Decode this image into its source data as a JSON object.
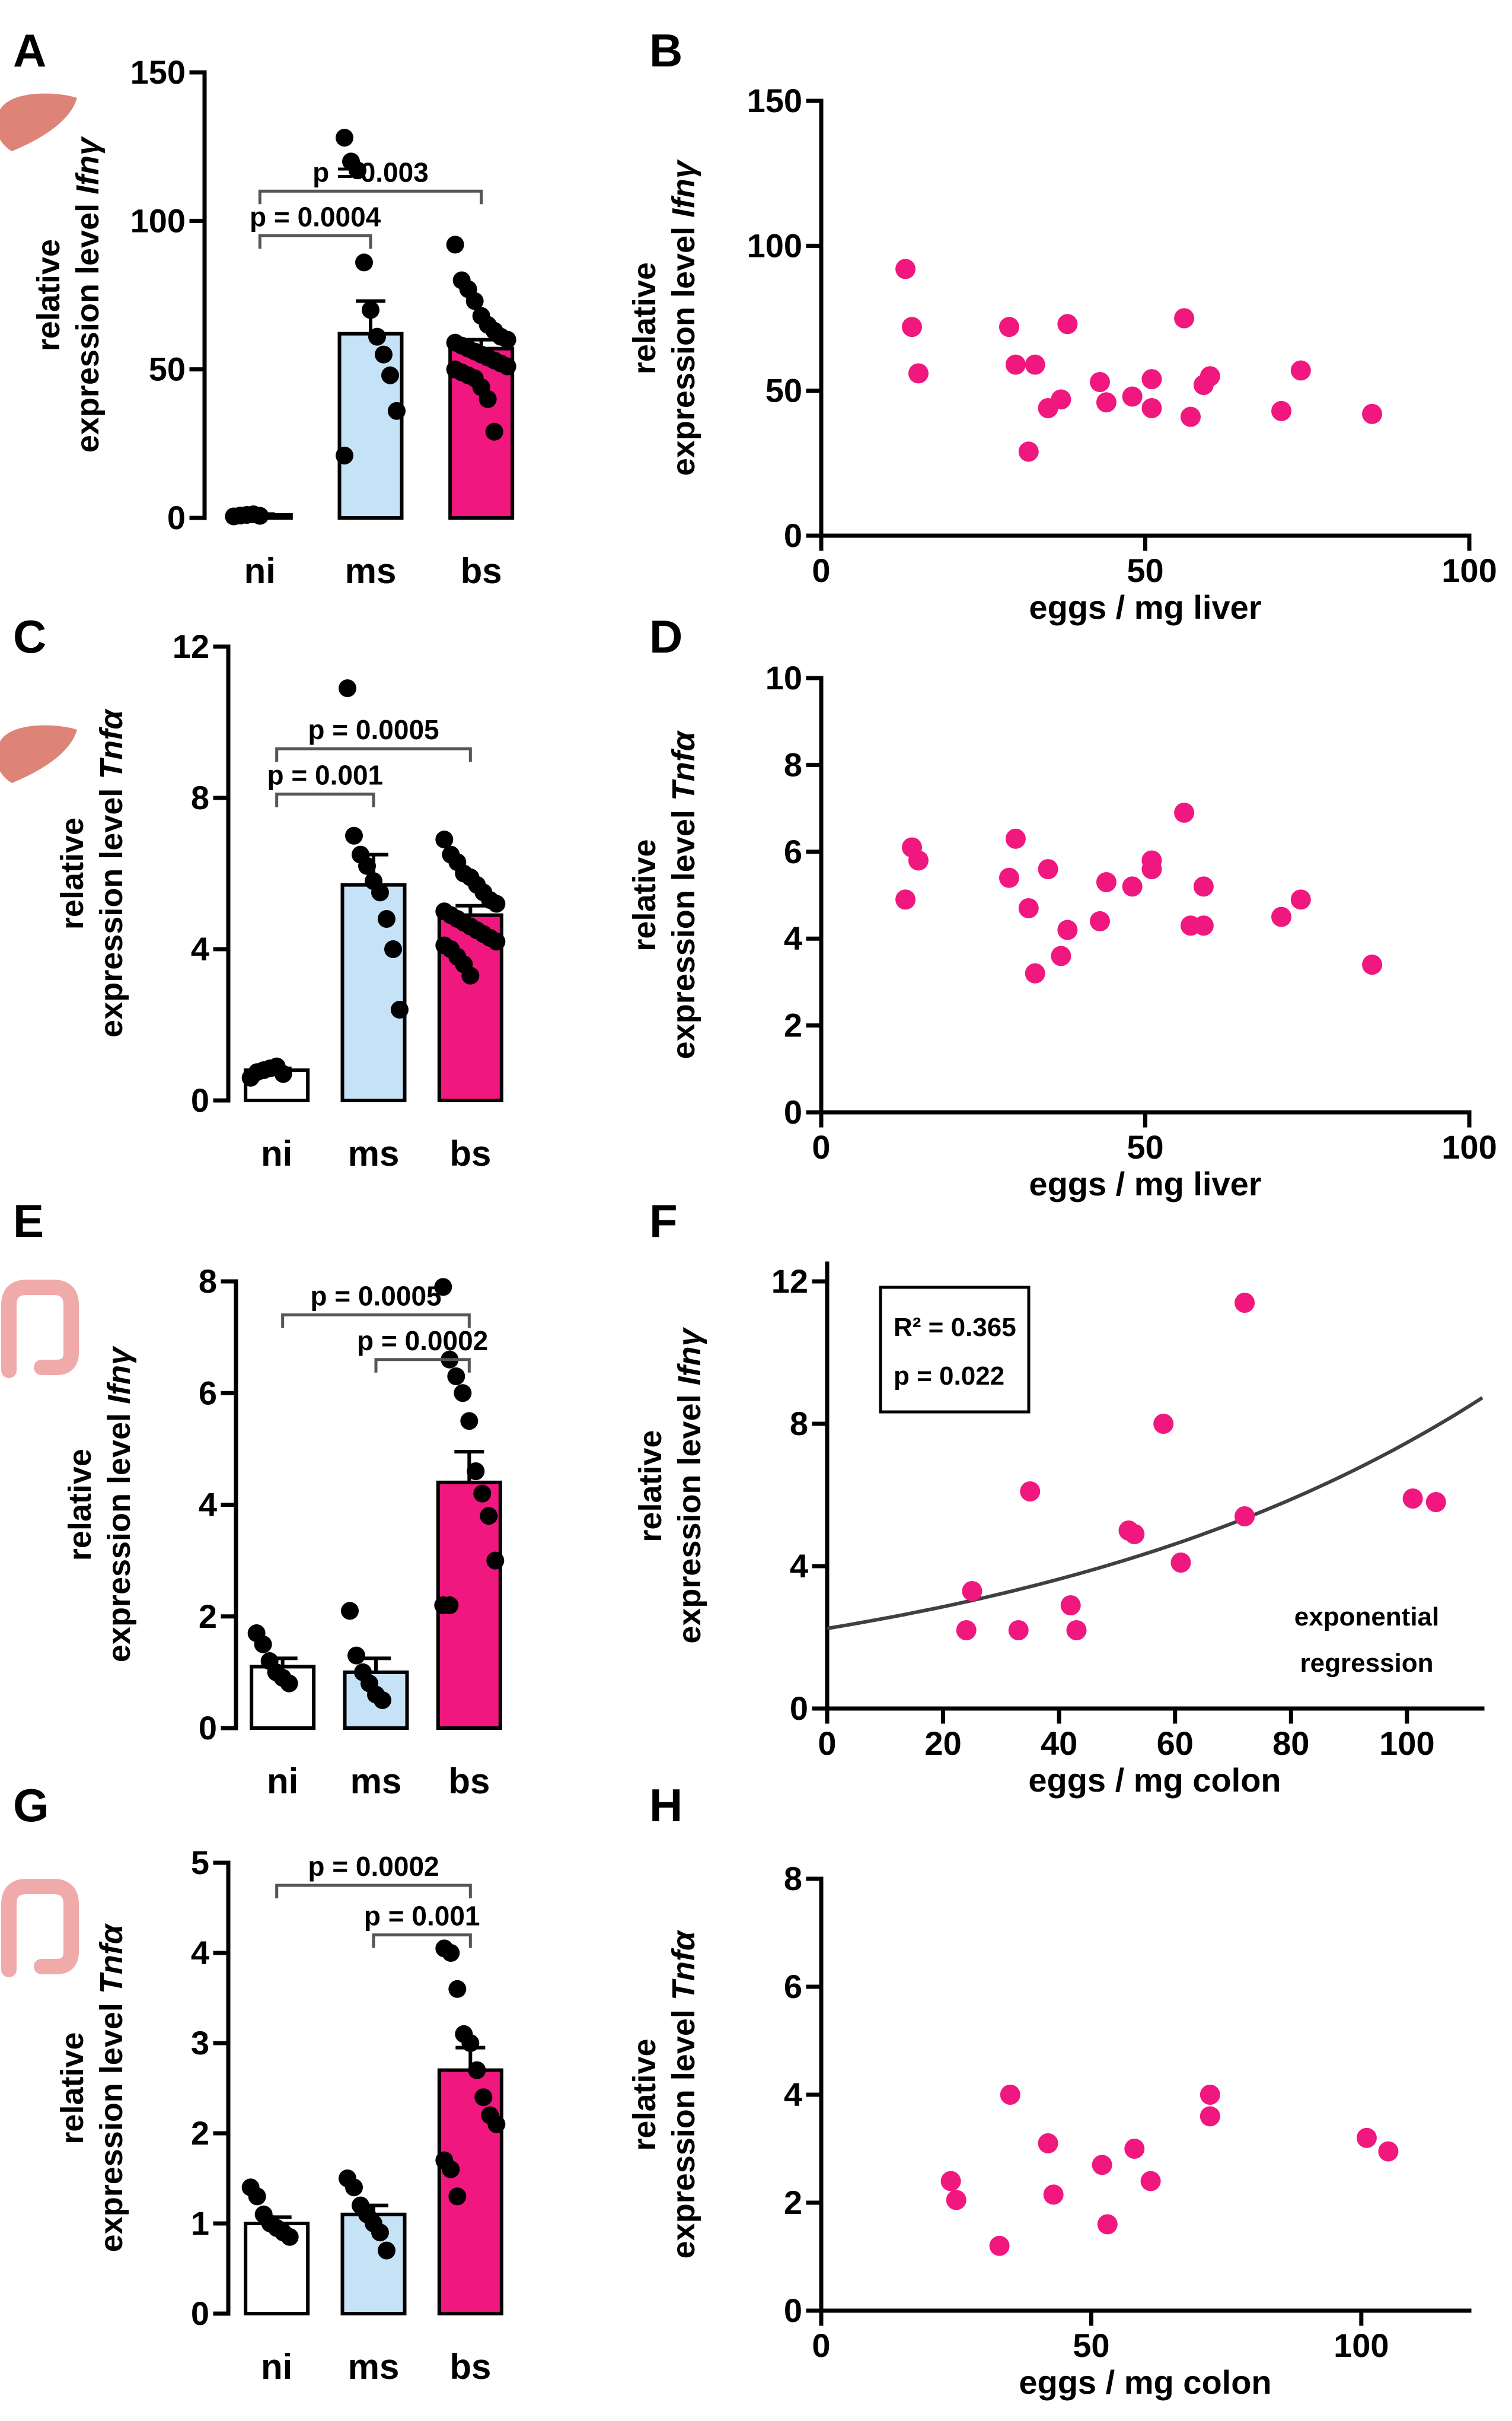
{
  "colors": {
    "ni": "#ffffff",
    "ms": "#c6e2f7",
    "bs": "#f0177f",
    "scatter": "#f0177f",
    "fit": "#404040",
    "organ": "#dd8378",
    "colon": "#f0aaaa"
  },
  "icons": [
    "liver-icon",
    "liver-icon",
    "colon-icon",
    "colon-icon"
  ],
  "chart_data": [
    {
      "panel": "A",
      "type": "bar",
      "organ_icon": "liver-icon",
      "categories": [
        "ni",
        "ms",
        "bs"
      ],
      "values": [
        1,
        62,
        57
      ],
      "errors": [
        0.3,
        11,
        3
      ],
      "points": [
        [
          0.5,
          0.8,
          1,
          1.2,
          0.7
        ],
        [
          128,
          120,
          117,
          86,
          70,
          61,
          55,
          48,
          36,
          21
        ],
        [
          92,
          80,
          77,
          73,
          68,
          65,
          63,
          61,
          60,
          59,
          58,
          57,
          56,
          55,
          54,
          53,
          52,
          51,
          50,
          49,
          48,
          47,
          44,
          40,
          29
        ]
      ],
      "ylabel": "relative expression level Ifnγ",
      "ylabel_line1": "relative",
      "ylabel_line2": "expression level ",
      "gene": "Ifnγ",
      "ylim": [
        0,
        150
      ],
      "yticks": [
        "0",
        "50",
        "100",
        "150"
      ],
      "comparisons": [
        {
          "groups": [
            0,
            2
          ],
          "y": 110,
          "label": "p = 0.003"
        },
        {
          "groups": [
            0,
            1
          ],
          "y": 95,
          "label": "p = 0.0004"
        }
      ]
    },
    {
      "panel": "B",
      "type": "scatter",
      "x": [
        13,
        14,
        15,
        29,
        30,
        32,
        33,
        35,
        37,
        38,
        43,
        44,
        48,
        51,
        51,
        56,
        57,
        59,
        60,
        71,
        74,
        85
      ],
      "y": [
        92,
        72,
        56,
        72,
        59,
        29,
        59,
        44,
        47,
        73,
        53,
        46,
        48,
        54,
        44,
        75,
        41,
        52,
        55,
        43,
        57,
        42
      ],
      "xlabel": "eggs / mg liver",
      "ylabel": "relative expression level Ifnγ",
      "ylabel_line1": "relative",
      "ylabel_line2": "expression level ",
      "gene": "Ifnγ",
      "xlim": [
        0,
        100
      ],
      "ylim": [
        0,
        150
      ],
      "xticks": [
        "0",
        "50",
        "100"
      ],
      "yticks": [
        "0",
        "50",
        "100",
        "150"
      ]
    },
    {
      "panel": "C",
      "type": "bar",
      "organ_icon": "liver-icon",
      "categories": [
        "ni",
        "ms",
        "bs"
      ],
      "values": [
        0.8,
        5.7,
        4.9
      ],
      "errors": [
        0.05,
        0.8,
        0.25
      ],
      "points": [
        [
          0.6,
          0.75,
          0.8,
          0.85,
          0.9,
          0.7
        ],
        [
          10.9,
          7.0,
          6.5,
          6.2,
          5.8,
          5.5,
          4.8,
          4.0,
          2.4
        ],
        [
          6.9,
          6.5,
          6.3,
          6.0,
          5.9,
          5.7,
          5.5,
          5.3,
          5.2,
          5.0,
          4.9,
          4.8,
          4.7,
          4.6,
          4.5,
          4.4,
          4.3,
          4.2,
          4.1,
          4.0,
          3.8,
          3.6,
          3.3
        ]
      ],
      "ylabel": "relative expression level Tnfα",
      "ylabel_line1": "relative",
      "ylabel_line2": "expression level ",
      "gene": "Tnfα",
      "ylim": [
        0,
        12
      ],
      "yticks": [
        "0",
        "4",
        "8",
        "12"
      ],
      "comparisons": [
        {
          "groups": [
            0,
            2
          ],
          "y": 9.3,
          "label": "p = 0.0005"
        },
        {
          "groups": [
            0,
            1
          ],
          "y": 8.1,
          "label": "p = 0.001"
        }
      ]
    },
    {
      "panel": "D",
      "type": "scatter",
      "x": [
        13,
        14,
        15,
        29,
        30,
        32,
        33,
        35,
        37,
        38,
        43,
        44,
        48,
        51,
        51,
        56,
        57,
        59,
        59,
        71,
        74,
        85
      ],
      "y": [
        4.9,
        6.1,
        5.8,
        5.4,
        6.3,
        4.7,
        3.2,
        5.6,
        3.6,
        4.2,
        4.4,
        5.3,
        5.2,
        5.8,
        5.6,
        6.9,
        4.3,
        5.2,
        4.3,
        4.5,
        4.9,
        3.4
      ],
      "xlabel": "eggs / mg liver",
      "ylabel": "relative expression level Tnfα",
      "ylabel_line1": "relative",
      "ylabel_line2": "expression level ",
      "gene": "Tnfα",
      "xlim": [
        0,
        100
      ],
      "ylim": [
        0,
        10
      ],
      "xticks": [
        "0",
        "50",
        "100"
      ],
      "yticks": [
        "0",
        "2",
        "4",
        "6",
        "8",
        "10"
      ]
    },
    {
      "panel": "E",
      "type": "bar",
      "organ_icon": "colon-icon",
      "categories": [
        "ni",
        "ms",
        "bs"
      ],
      "values": [
        1.1,
        1.0,
        4.4
      ],
      "errors": [
        0.15,
        0.25,
        0.55
      ],
      "points": [
        [
          1.7,
          1.5,
          1.2,
          1.0,
          0.9,
          0.8
        ],
        [
          2.1,
          1.3,
          1.0,
          0.8,
          0.6,
          0.5
        ],
        [
          7.9,
          6.6,
          6.3,
          6.0,
          5.5,
          4.6,
          4.2,
          3.8,
          3.0,
          2.2,
          2.2
        ]
      ],
      "ylabel": "relative expression level Ifnγ",
      "ylabel_line1": "relative",
      "ylabel_line2": "expression level ",
      "gene": "Ifnγ",
      "ylim": [
        0,
        8
      ],
      "yticks": [
        "0",
        "2",
        "4",
        "6",
        "8"
      ],
      "comparisons": [
        {
          "groups": [
            0,
            2
          ],
          "y": 7.4,
          "label": "p = 0.0005"
        },
        {
          "groups": [
            1,
            2
          ],
          "y": 6.6,
          "label": "p = 0.0002"
        }
      ]
    },
    {
      "panel": "F",
      "type": "scatter",
      "x": [
        24,
        25,
        33,
        35,
        42,
        43,
        52,
        53,
        58,
        61,
        72,
        72,
        101,
        105
      ],
      "y": [
        2.2,
        3.3,
        2.2,
        6.1,
        2.9,
        2.2,
        5.0,
        4.9,
        8.0,
        4.1,
        11.4,
        5.4,
        5.9,
        5.8
      ],
      "xlabel": "eggs / mg colon",
      "ylabel": "relative expression level Ifnγ",
      "ylabel_line1": "relative",
      "ylabel_line2": "expression level ",
      "gene": "Ifnγ",
      "xlim": [
        0,
        113
      ],
      "ylim": [
        0,
        12.5
      ],
      "xticks": [
        "0",
        "20",
        "40",
        "60",
        "80",
        "100"
      ],
      "yticks": [
        "0",
        "4",
        "8",
        "12"
      ],
      "fit": {
        "type": "exponential",
        "a": 2.25,
        "b": 0.012
      },
      "stats": [
        "R² = 0.365",
        "p = 0.022"
      ],
      "annotation": [
        "exponential",
        "regression"
      ]
    },
    {
      "panel": "G",
      "type": "bar",
      "organ_icon": "colon-icon",
      "categories": [
        "ni",
        "ms",
        "bs"
      ],
      "values": [
        1.0,
        1.1,
        2.7
      ],
      "errors": [
        0.07,
        0.1,
        0.25
      ],
      "points": [
        [
          1.4,
          1.3,
          1.1,
          1.0,
          0.95,
          0.9,
          0.85
        ],
        [
          1.5,
          1.4,
          1.2,
          1.1,
          1.0,
          0.9,
          0.7
        ],
        [
          4.05,
          4.0,
          3.6,
          3.1,
          3.0,
          2.7,
          2.4,
          2.2,
          2.1,
          1.7,
          1.6,
          1.3
        ]
      ],
      "ylabel": "relative expression level Tnfα",
      "ylabel_line1": "relative",
      "ylabel_line2": "expression level ",
      "gene": "Tnfα",
      "ylim": [
        0,
        5
      ],
      "yticks": [
        "0",
        "1",
        "2",
        "3",
        "4",
        "5"
      ],
      "comparisons": [
        {
          "groups": [
            0,
            2
          ],
          "y": 4.75,
          "label": "p = 0.0002"
        },
        {
          "groups": [
            1,
            2
          ],
          "y": 4.2,
          "label": "p = 0.001"
        }
      ]
    },
    {
      "panel": "H",
      "type": "scatter",
      "x": [
        24,
        25,
        33,
        35,
        42,
        43,
        52,
        53,
        58,
        61,
        72,
        72,
        101,
        105
      ],
      "y": [
        2.4,
        2.05,
        1.2,
        4.0,
        3.1,
        2.15,
        2.7,
        1.6,
        3.0,
        2.4,
        4.0,
        3.6,
        3.2,
        2.95
      ],
      "xlabel": "eggs / mg colon",
      "ylabel": "relative expression level Tnfα",
      "ylabel_line1": "relative",
      "ylabel_line2": "expression level ",
      "gene": "Tnfα",
      "xlim": [
        0,
        120
      ],
      "ylim": [
        0,
        8
      ],
      "xticks": [
        "0",
        "50",
        "100"
      ],
      "yticks": [
        "0",
        "2",
        "4",
        "6",
        "8"
      ]
    }
  ]
}
